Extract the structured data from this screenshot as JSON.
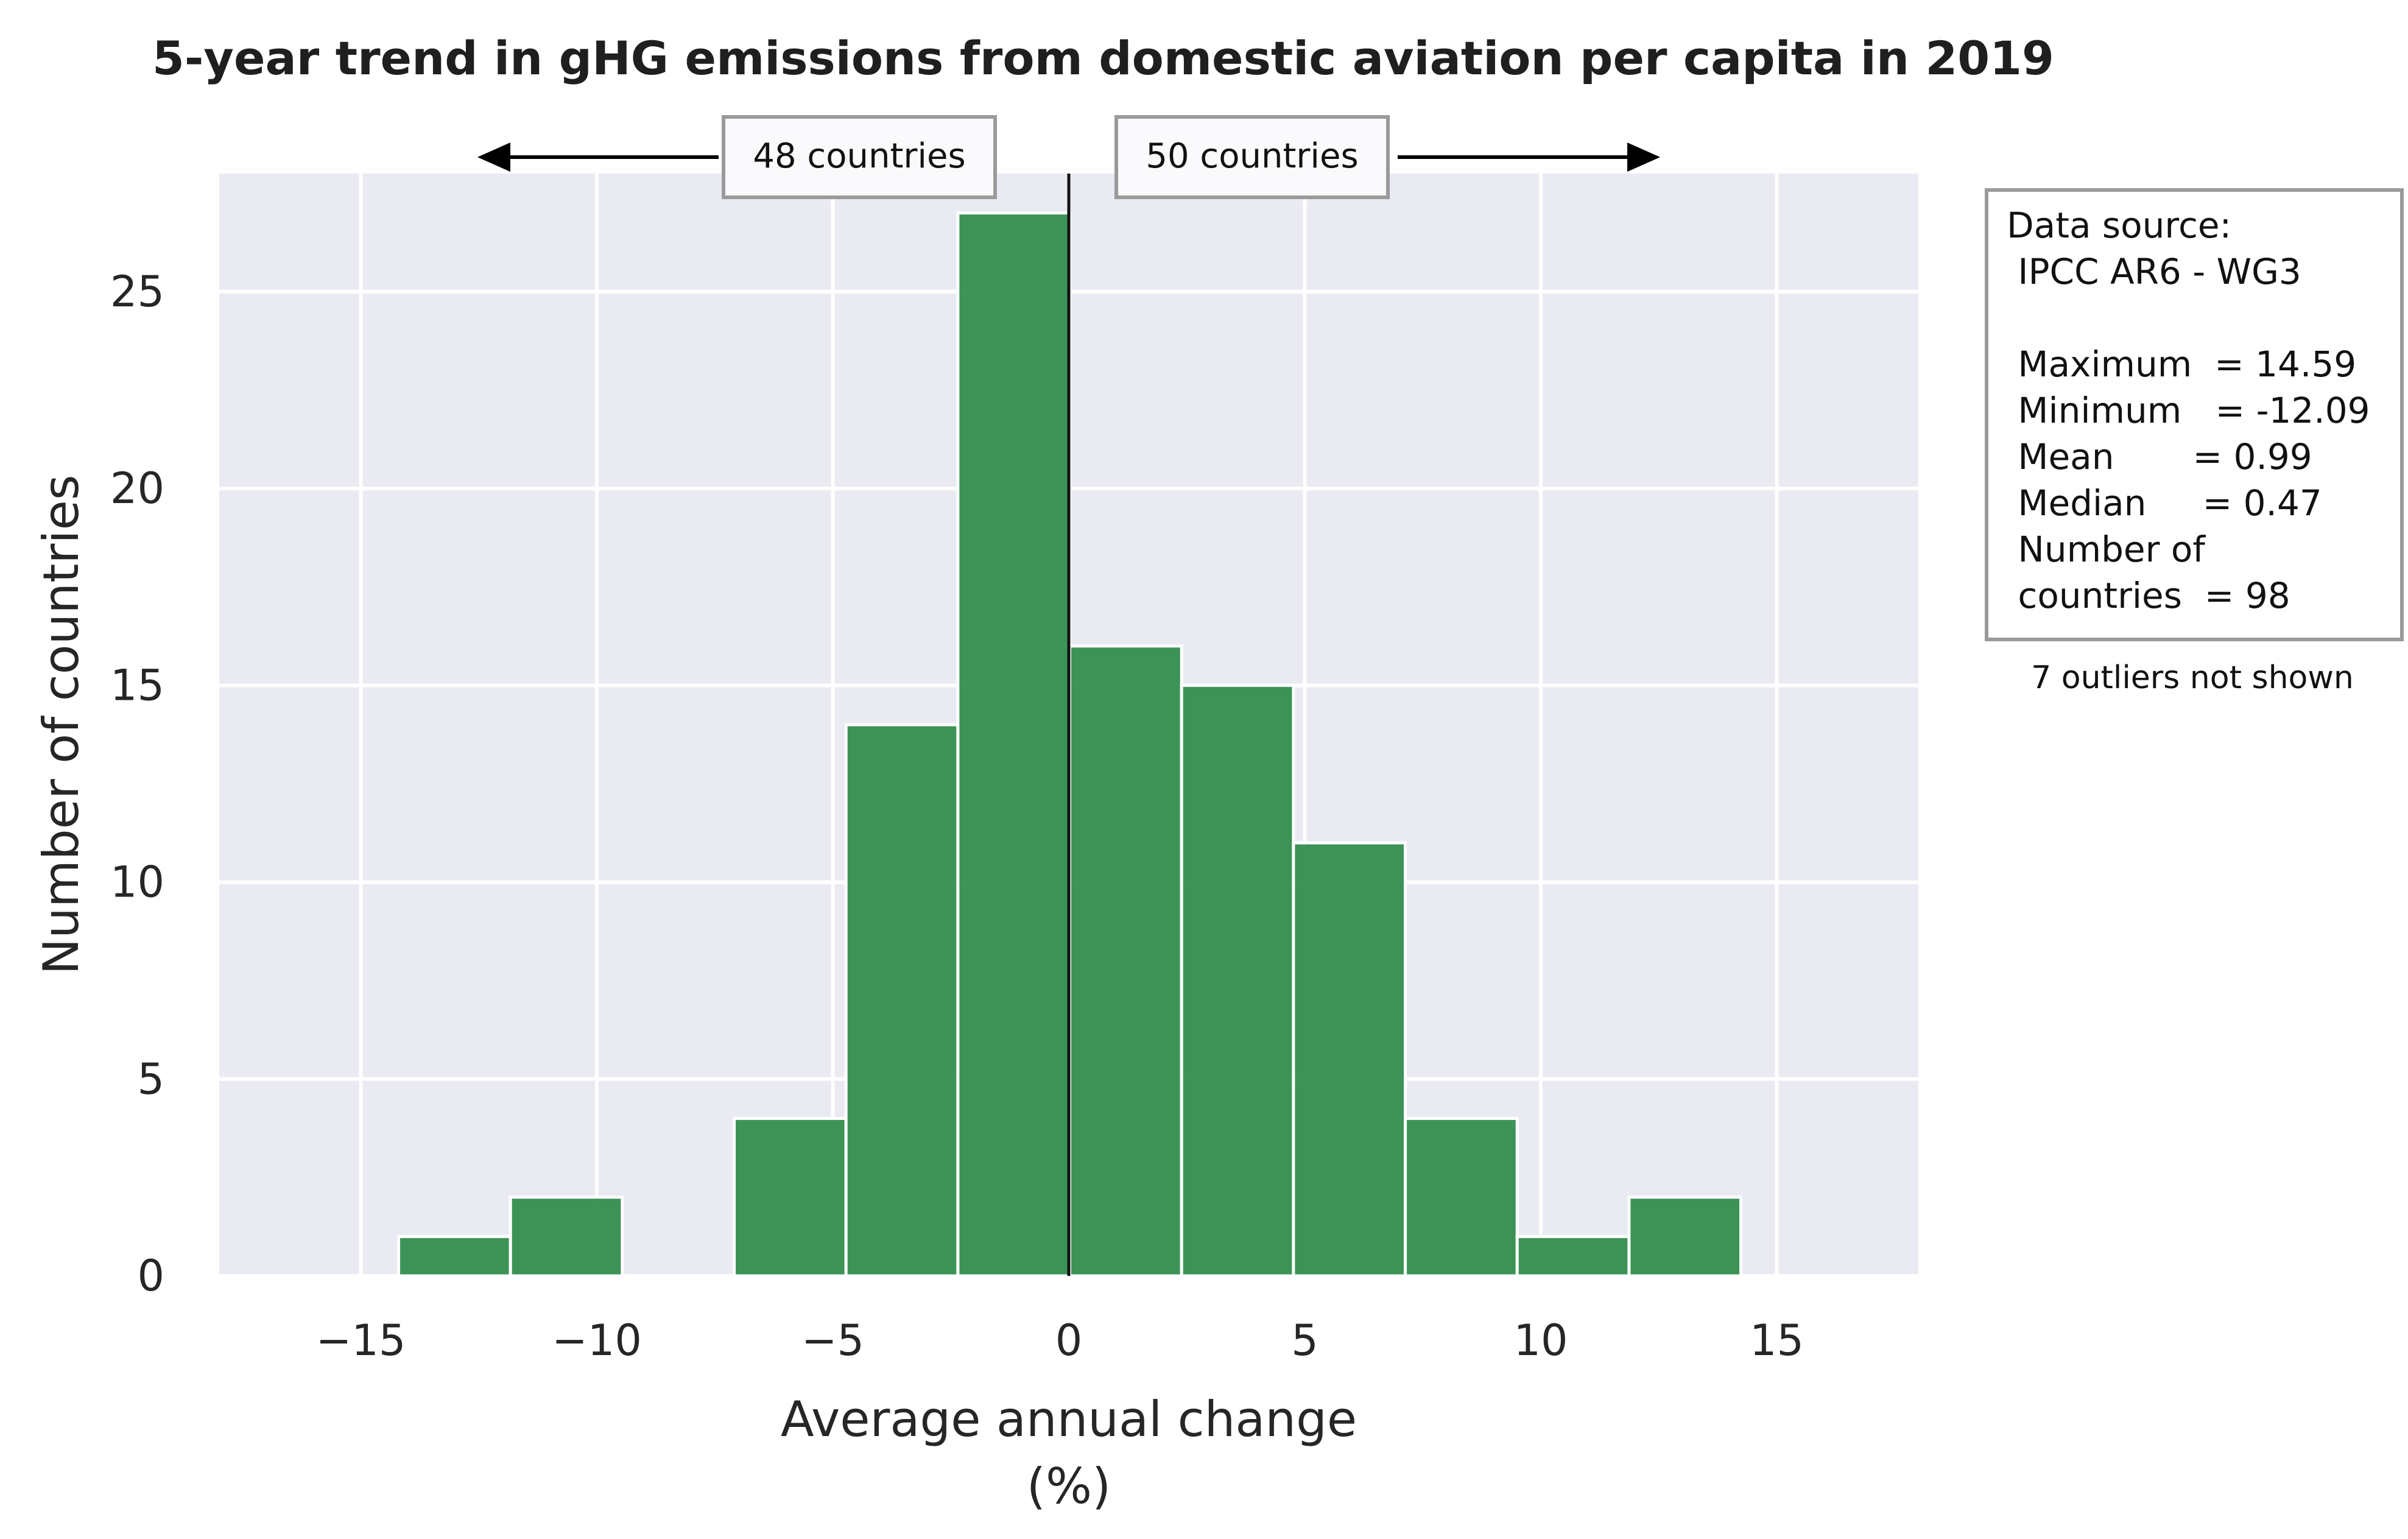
{
  "chart_data": {
    "type": "bar",
    "title": "5-year trend in gHG emissions from domestic aviation per capita in 2019",
    "xlabel_line1": "Average annual change",
    "xlabel_line2": "(%)",
    "ylabel": "Number of countries",
    "xlim": [
      -18,
      18
    ],
    "ylim": [
      0,
      28
    ],
    "xticks": [
      -15,
      -10,
      -5,
      0,
      5,
      10,
      15
    ],
    "xtick_labels": [
      "−15",
      "−10",
      "−5",
      "0",
      "5",
      "10",
      "15"
    ],
    "yticks": [
      0,
      5,
      10,
      15,
      20,
      25
    ],
    "ytick_labels": [
      "0",
      "5",
      "10",
      "15",
      "20",
      "25"
    ],
    "grid": true,
    "bin_width": 2.37,
    "bins": [
      {
        "x0": -14.2,
        "x1": -11.83,
        "count": 1
      },
      {
        "x0": -11.83,
        "x1": -9.46,
        "count": 2
      },
      {
        "x0": -9.46,
        "x1": -7.09,
        "count": 0
      },
      {
        "x0": -7.09,
        "x1": -4.72,
        "count": 4
      },
      {
        "x0": -4.72,
        "x1": -2.35,
        "count": 14
      },
      {
        "x0": -2.35,
        "x1": 0.02,
        "count": 27
      },
      {
        "x0": 0.02,
        "x1": 2.39,
        "count": 16
      },
      {
        "x0": 2.39,
        "x1": 4.76,
        "count": 15
      },
      {
        "x0": 4.76,
        "x1": 7.13,
        "count": 11
      },
      {
        "x0": 7.13,
        "x1": 9.5,
        "count": 4
      },
      {
        "x0": 9.5,
        "x1": 11.87,
        "count": 1
      },
      {
        "x0": 11.87,
        "x1": 14.24,
        "count": 2
      }
    ],
    "zero_line_x": 0,
    "left_count_label": "48 countries",
    "right_count_label": "50 countries",
    "bar_color": "#2e8b4a",
    "plot_background": "#eaeaf2"
  },
  "info_box": {
    "lines": [
      "Data source:",
      " IPCC AR6 - WG3",
      "",
      " Maximum  = 14.59",
      " Minimum   = -12.09",
      " Mean       = 0.99",
      " Median     = 0.47",
      " Number of",
      " countries  = 98"
    ]
  },
  "outlier_note": "7 outliers not shown"
}
